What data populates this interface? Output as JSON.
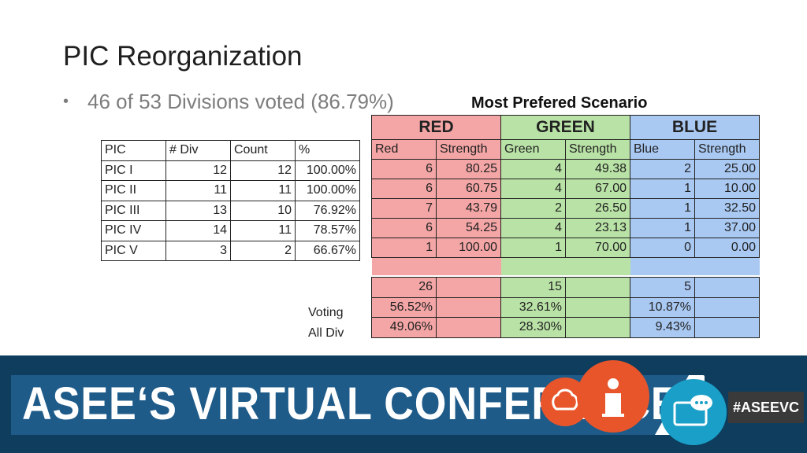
{
  "title": "PIC Reorganization",
  "bullet": "46 of 53 Divisions voted (86.79%)",
  "scenario_title": "Most Prefered Scenario",
  "pic_table": {
    "headers": [
      "PIC",
      "# Div",
      "Count",
      "%"
    ],
    "rows": [
      [
        "PIC I",
        "12",
        "12",
        "100.00%"
      ],
      [
        "PIC II",
        "11",
        "11",
        "100.00%"
      ],
      [
        "PIC III",
        "13",
        "10",
        "76.92%"
      ],
      [
        "PIC IV",
        "14",
        "11",
        "78.57%"
      ],
      [
        "PIC V",
        "3",
        "2",
        "66.67%"
      ]
    ]
  },
  "scenarios": {
    "groups": [
      "RED",
      "GREEN",
      "BLUE"
    ],
    "subheaders": [
      "Red",
      "Strength",
      "Green",
      "Strength",
      "Blue",
      "Strength"
    ],
    "rows": [
      [
        "6",
        "80.25",
        "4",
        "49.38",
        "2",
        "25.00"
      ],
      [
        "6",
        "60.75",
        "4",
        "67.00",
        "1",
        "10.00"
      ],
      [
        "7",
        "43.79",
        "2",
        "26.50",
        "1",
        "32.50"
      ],
      [
        "6",
        "54.25",
        "4",
        "23.13",
        "1",
        "37.00"
      ],
      [
        "1",
        "100.00",
        "1",
        "70.00",
        "0",
        "0.00"
      ]
    ],
    "totals": [
      "26",
      "15",
      "5"
    ],
    "voting_label": "Voting",
    "voting": [
      "56.52%",
      "32.61%",
      "10.87%"
    ],
    "alldiv_label": "All Div",
    "alldiv": [
      "49.06%",
      "28.30%",
      "9.43%"
    ]
  },
  "banner": {
    "text": "ASEE‘S VIRTUAL CONFERENCE",
    "hashtag": "#ASEEVC",
    "colors": {
      "navy": "#0e3d5e",
      "blue": "#1e5b89",
      "orange": "#e8552a",
      "teal": "#1aa0c8"
    }
  }
}
